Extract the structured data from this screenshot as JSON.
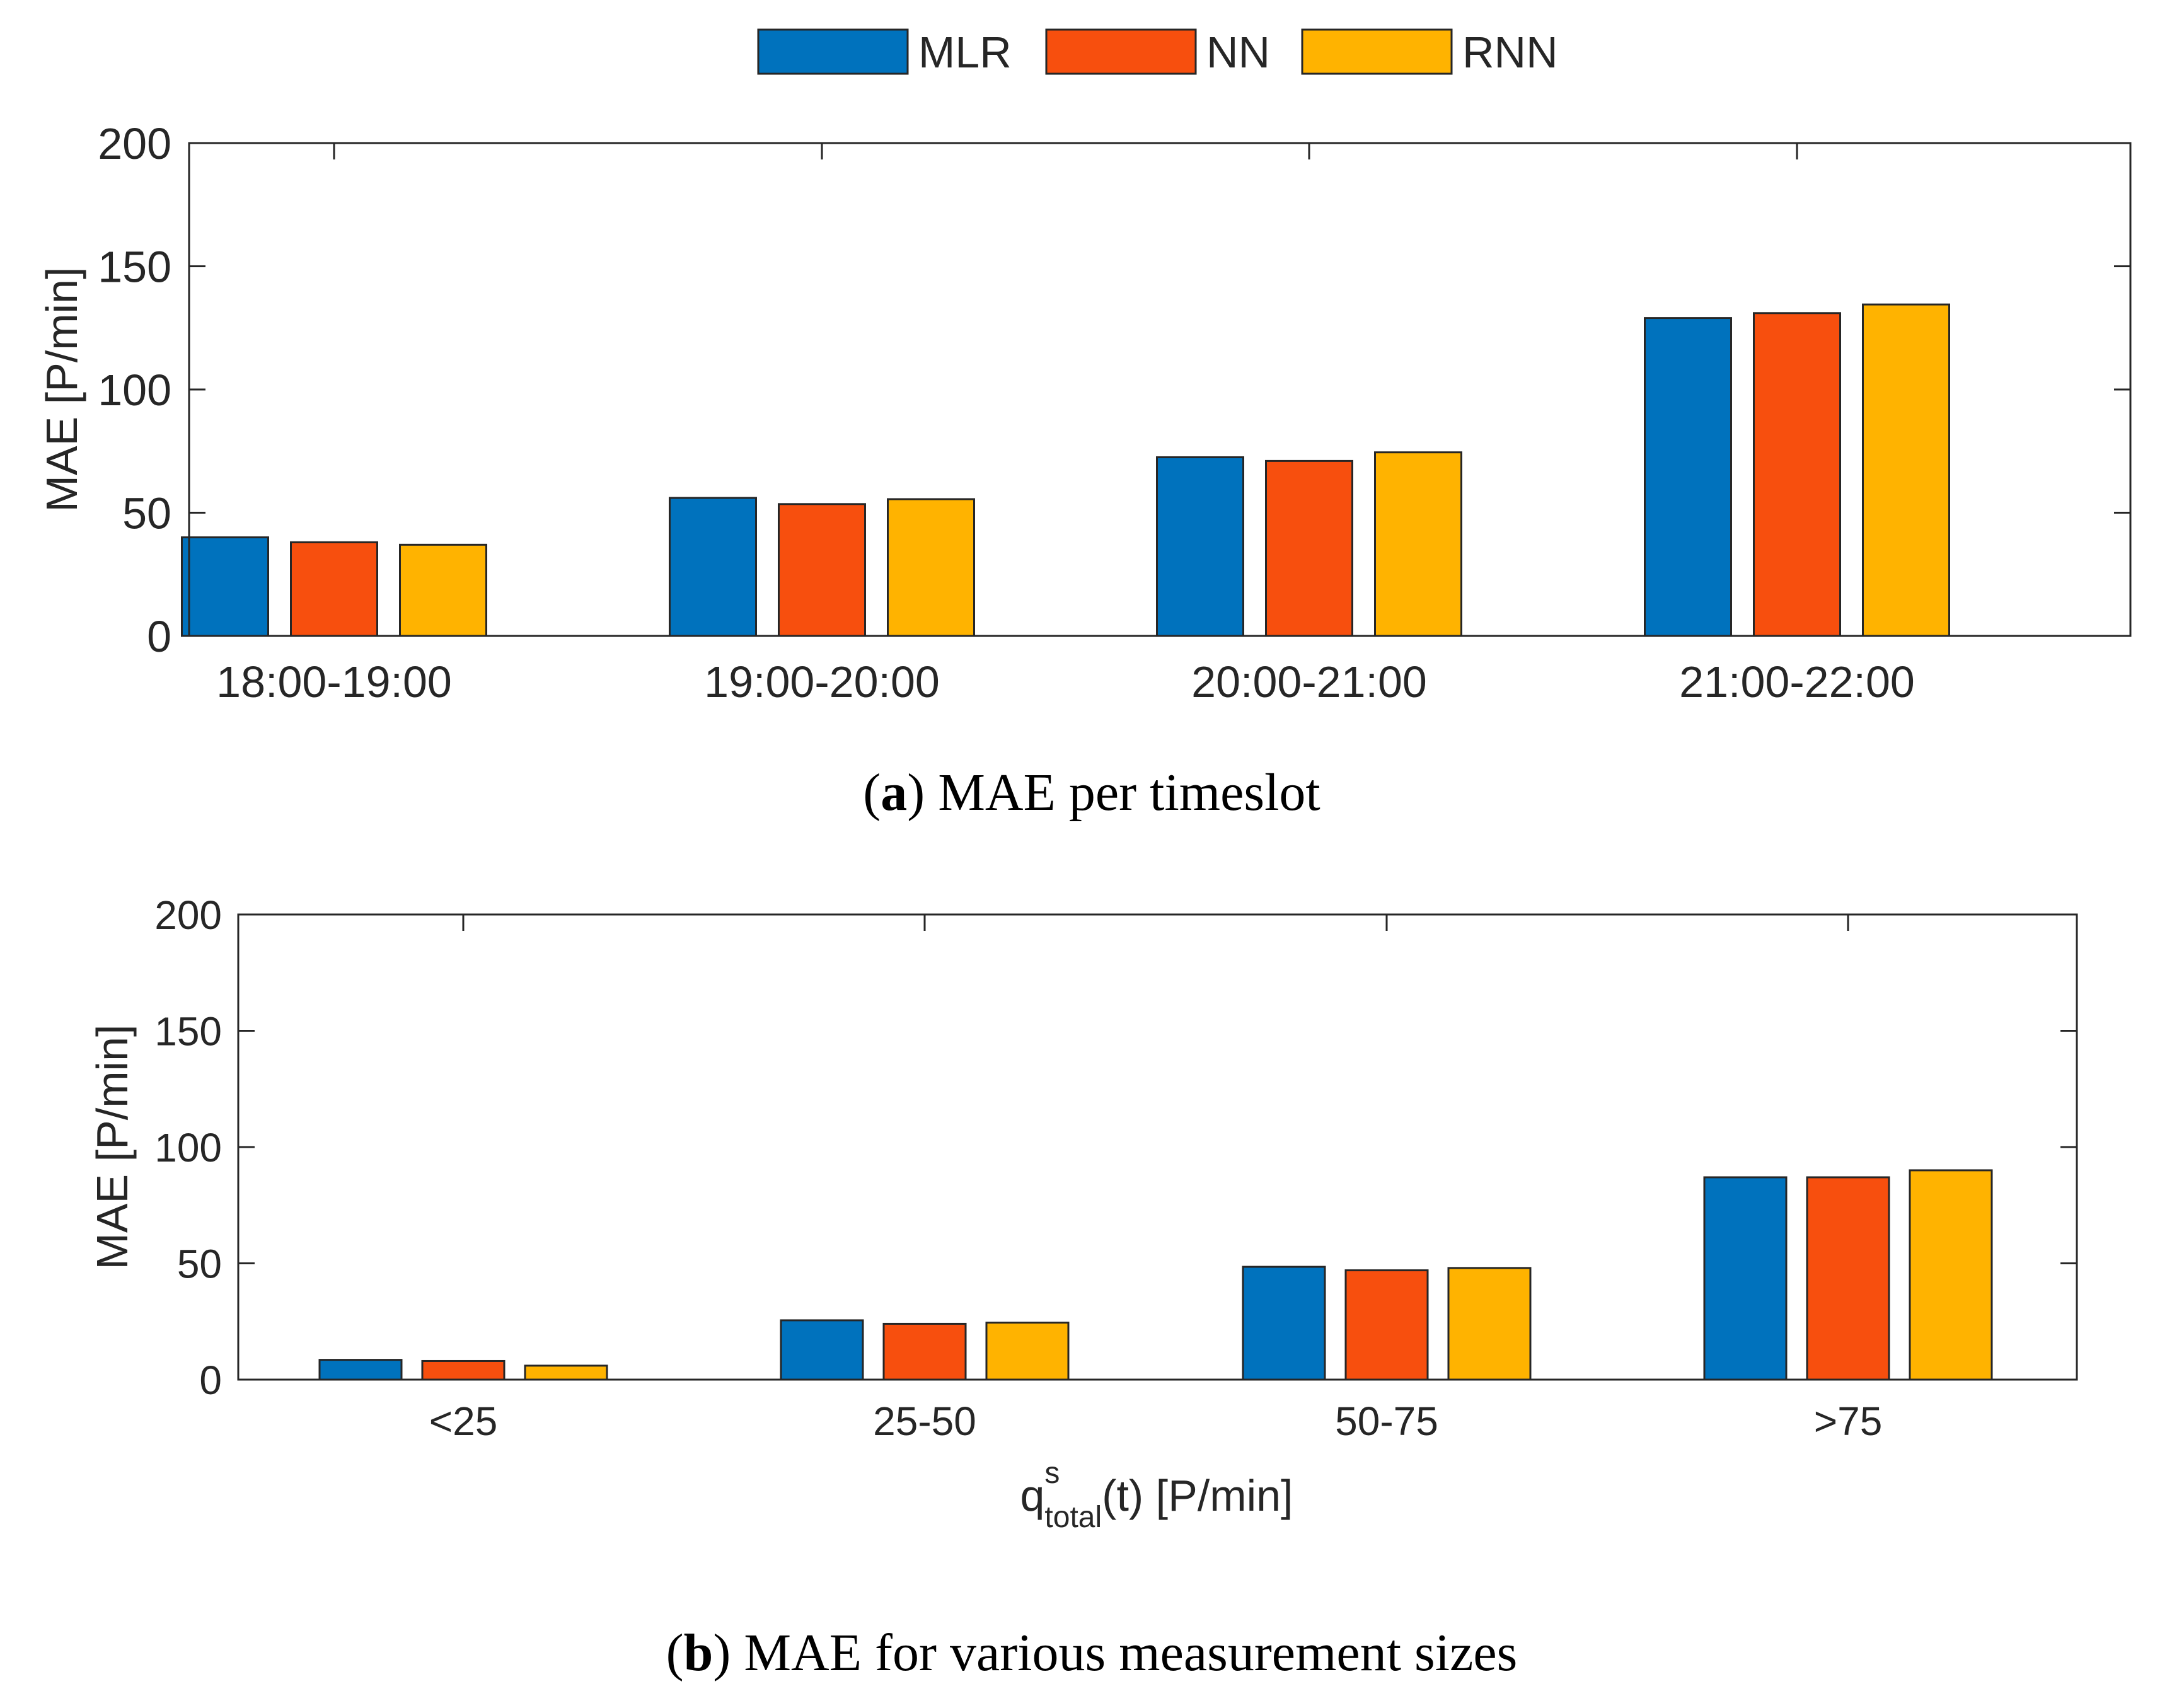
{
  "legend": [
    {
      "name": "MLR",
      "color": "#0072BD"
    },
    {
      "name": "NN",
      "color": "#F74F0E"
    },
    {
      "name": "RNN",
      "color": "#FFB300"
    }
  ],
  "chart_data": [
    {
      "type": "bar",
      "categories": [
        "18:00-19:00",
        "19:00-20:00",
        "20:00-21:00",
        "21:00-22:00"
      ],
      "series": [
        {
          "name": "MLR",
          "values": [
            40,
            56,
            72.5,
            129
          ]
        },
        {
          "name": "NN",
          "values": [
            38,
            53.5,
            71,
            131
          ]
        },
        {
          "name": "RNN",
          "values": [
            37,
            55.5,
            74.5,
            134.5
          ]
        }
      ],
      "ylabel": "MAE [P/min]",
      "xlabel": "",
      "ylim": [
        0,
        200
      ],
      "yticks": [
        "0",
        "50",
        "100",
        "150",
        "200"
      ],
      "caption_letter": "a",
      "caption_text": "MAE per timeslot"
    },
    {
      "type": "bar",
      "categories": [
        "<25",
        "25-50",
        "50-75",
        ">75"
      ],
      "series": [
        {
          "name": "MLR",
          "values": [
            8.5,
            25.5,
            48.5,
            87
          ]
        },
        {
          "name": "NN",
          "values": [
            8,
            24,
            47,
            87
          ]
        },
        {
          "name": "RNN",
          "values": [
            6,
            24.5,
            48,
            90
          ]
        }
      ],
      "ylabel": "MAE [P/min]",
      "xlabel_base": "q",
      "xlabel_sup": "s",
      "xlabel_sub": "total",
      "xlabel_rest": "(t) [P/min]",
      "ylim": [
        0,
        200
      ],
      "yticks": [
        "0",
        "50",
        "100",
        "150",
        "200"
      ],
      "caption_letter": "b",
      "caption_text": "MAE for various measurement sizes"
    }
  ]
}
